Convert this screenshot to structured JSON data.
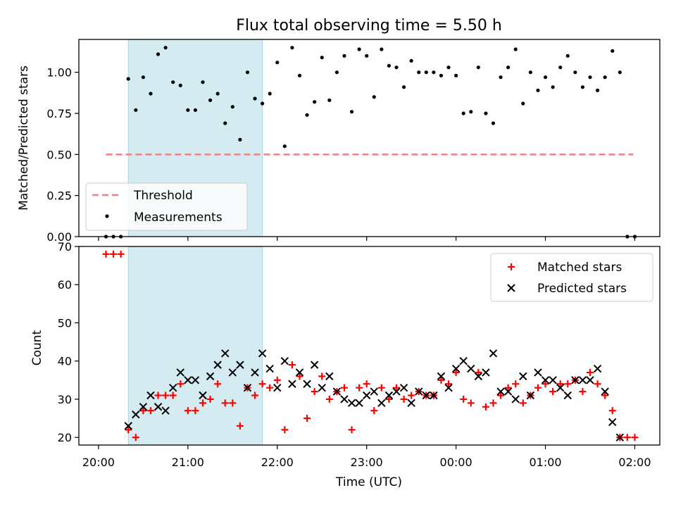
{
  "figure": {
    "title": "Flux total observing time = 5.50 h",
    "xlabel": "Time (UTC)",
    "x_tick_labels": [
      "20:00",
      "21:00",
      "22:00",
      "23:00",
      "00:00",
      "01:00",
      "02:00"
    ],
    "shaded_region_color": "#d4ebf1",
    "shaded_region": {
      "start": "20:20",
      "end": "21:50"
    }
  },
  "chart_data": [
    {
      "type": "scatter",
      "ylabel": "Matched/Predicted stars",
      "ylim": [
        0,
        1.2
      ],
      "y_ticks": [
        0.0,
        0.25,
        0.5,
        0.75,
        1.0
      ],
      "y_tick_labels": [
        "0.00",
        "0.25",
        "0.50",
        "0.75",
        "1.00"
      ],
      "legend_position": "lower-left",
      "threshold": {
        "name": "Threshold",
        "value": 0.5,
        "x_start": "20:05",
        "x_end": "01:59",
        "color": "#f08080"
      },
      "series": [
        {
          "name": "Measurements",
          "color": "#000000",
          "x": [
            "20:05",
            "20:10",
            "20:15",
            "20:20",
            "20:25",
            "20:30",
            "20:35",
            "20:40",
            "20:45",
            "20:50",
            "20:55",
            "21:00",
            "21:05",
            "21:10",
            "21:15",
            "21:20",
            "21:25",
            "21:30",
            "21:35",
            "21:40",
            "21:45",
            "21:50",
            "21:55",
            "22:00",
            "22:05",
            "22:10",
            "22:15",
            "22:20",
            "22:25",
            "22:30",
            "22:35",
            "22:40",
            "22:45",
            "22:50",
            "22:55",
            "23:00",
            "23:05",
            "23:10",
            "23:15",
            "23:20",
            "23:25",
            "23:30",
            "23:35",
            "23:40",
            "23:45",
            "23:50",
            "23:55",
            "00:00",
            "00:05",
            "00:10",
            "00:15",
            "00:20",
            "00:25",
            "00:30",
            "00:35",
            "00:40",
            "00:45",
            "00:50",
            "00:55",
            "01:00",
            "01:05",
            "01:10",
            "01:15",
            "01:20",
            "01:25",
            "01:30",
            "01:35",
            "01:40",
            "01:45",
            "01:50",
            "01:55",
            "02:00"
          ],
          "y": [
            0.0,
            0.0,
            0.0,
            0.96,
            0.77,
            0.97,
            0.87,
            1.11,
            1.15,
            0.94,
            0.92,
            0.77,
            0.77,
            0.94,
            0.83,
            0.87,
            0.69,
            0.79,
            0.59,
            1.0,
            0.84,
            0.81,
            0.87,
            1.06,
            0.55,
            1.15,
            0.98,
            0.74,
            0.82,
            1.09,
            0.83,
            1.0,
            1.1,
            0.76,
            1.14,
            1.1,
            0.85,
            1.14,
            1.04,
            1.03,
            0.91,
            1.07,
            1.0,
            1.0,
            1.0,
            0.98,
            1.03,
            0.98,
            0.75,
            0.76,
            1.03,
            0.75,
            0.69,
            0.97,
            1.03,
            1.14,
            0.81,
            1.0,
            0.89,
            0.97,
            0.91,
            1.03,
            1.1,
            1.0,
            0.91,
            0.97,
            0.89,
            0.97,
            1.13,
            1.0,
            0.0,
            0.0
          ]
        }
      ]
    },
    {
      "type": "scatter",
      "ylabel": "Count",
      "ylim": [
        18,
        70
      ],
      "y_ticks": [
        20,
        30,
        40,
        50,
        60,
        70
      ],
      "y_tick_labels": [
        "20",
        "30",
        "40",
        "50",
        "60",
        "70"
      ],
      "legend_position": "top-right",
      "series": [
        {
          "name": "Matched stars",
          "marker": "plus",
          "color": "#ff0000",
          "x": [
            "20:05",
            "20:10",
            "20:15",
            "20:20",
            "20:25",
            "20:30",
            "20:35",
            "20:40",
            "20:45",
            "20:50",
            "20:55",
            "21:00",
            "21:05",
            "21:10",
            "21:15",
            "21:20",
            "21:25",
            "21:30",
            "21:35",
            "21:40",
            "21:45",
            "21:50",
            "21:55",
            "22:00",
            "22:05",
            "22:10",
            "22:15",
            "22:20",
            "22:25",
            "22:30",
            "22:35",
            "22:40",
            "22:45",
            "22:50",
            "22:55",
            "23:00",
            "23:05",
            "23:10",
            "23:15",
            "23:20",
            "23:25",
            "23:30",
            "23:35",
            "23:40",
            "23:45",
            "23:50",
            "23:55",
            "00:00",
            "00:05",
            "00:10",
            "00:15",
            "00:20",
            "00:25",
            "00:30",
            "00:35",
            "00:40",
            "00:45",
            "00:50",
            "00:55",
            "01:00",
            "01:05",
            "01:10",
            "01:15",
            "01:20",
            "01:25",
            "01:30",
            "01:35",
            "01:40",
            "01:45",
            "01:50",
            "01:55",
            "02:00"
          ],
          "y": [
            68,
            68,
            68,
            22,
            20,
            27,
            27,
            31,
            31,
            31,
            34,
            27,
            27,
            29,
            30,
            34,
            29,
            29,
            23,
            33,
            31,
            34,
            33,
            35,
            22,
            39,
            36,
            25,
            32,
            36,
            30,
            32,
            33,
            22,
            33,
            34,
            27,
            33,
            30,
            33,
            30,
            31,
            32,
            31,
            31,
            35,
            34,
            37,
            30,
            29,
            37,
            28,
            29,
            31,
            33,
            34,
            29,
            31,
            33,
            34,
            32,
            34,
            34,
            35,
            32,
            37,
            34,
            31,
            27,
            20,
            20,
            20
          ]
        },
        {
          "name": "Predicted stars",
          "marker": "x",
          "color": "#000000",
          "x": [
            "20:20",
            "20:25",
            "20:30",
            "20:35",
            "20:40",
            "20:45",
            "20:50",
            "20:55",
            "21:00",
            "21:05",
            "21:10",
            "21:15",
            "21:20",
            "21:25",
            "21:30",
            "21:35",
            "21:40",
            "21:45",
            "21:50",
            "21:55",
            "22:00",
            "22:05",
            "22:10",
            "22:15",
            "22:20",
            "22:25",
            "22:30",
            "22:35",
            "22:40",
            "22:45",
            "22:50",
            "22:55",
            "23:00",
            "23:05",
            "23:10",
            "23:15",
            "23:20",
            "23:25",
            "23:30",
            "23:35",
            "23:40",
            "23:45",
            "23:50",
            "23:55",
            "00:00",
            "00:05",
            "00:10",
            "00:15",
            "00:20",
            "00:25",
            "00:30",
            "00:35",
            "00:40",
            "00:45",
            "00:50",
            "00:55",
            "01:00",
            "01:05",
            "01:10",
            "01:15",
            "01:20",
            "01:25",
            "01:30",
            "01:35",
            "01:40",
            "01:45",
            "01:50"
          ],
          "y": [
            23,
            26,
            28,
            31,
            28,
            27,
            33,
            37,
            35,
            35,
            31,
            36,
            39,
            42,
            37,
            39,
            33,
            37,
            42,
            38,
            33,
            40,
            34,
            37,
            34,
            39,
            33,
            36,
            32,
            30,
            29,
            29,
            31,
            32,
            29,
            31,
            32,
            33,
            29,
            32,
            31,
            31,
            36,
            33,
            38,
            40,
            38,
            36,
            37,
            42,
            32,
            32,
            30,
            36,
            31,
            37,
            35,
            35,
            33,
            31,
            35,
            35,
            35,
            38,
            32,
            24,
            20
          ]
        }
      ]
    }
  ]
}
